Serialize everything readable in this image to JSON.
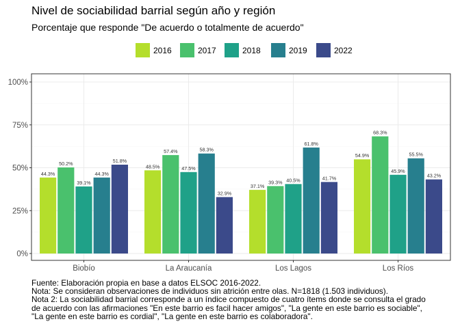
{
  "chart_data": {
    "type": "bar",
    "title": "Nivel de sociabilidad barrial según año y región",
    "subtitle": "Porcentaje que responde \"De acuerdo o totalmente de acuerdo\"",
    "categories": [
      "Biobío",
      "La Araucanía",
      "Los Lagos",
      "Los Ríos"
    ],
    "series": [
      {
        "name": "2016",
        "color": "#b4de2c",
        "values": [
          44.3,
          48.5,
          37.1,
          54.9
        ]
      },
      {
        "name": "2017",
        "color": "#4ac16d",
        "values": [
          50.2,
          57.4,
          39.3,
          68.3
        ]
      },
      {
        "name": "2018",
        "color": "#1fa188",
        "values": [
          39.1,
          47.5,
          40.5,
          45.9
        ]
      },
      {
        "name": "2019",
        "color": "#277f8e",
        "values": [
          44.3,
          58.3,
          61.8,
          55.5
        ]
      },
      {
        "name": "2022",
        "color": "#3b4a8a",
        "values": [
          51.8,
          32.9,
          41.7,
          43.2
        ]
      }
    ],
    "yticks": [
      "0%",
      "25%",
      "50%",
      "75%",
      "100%"
    ],
    "ylim": [
      0,
      100
    ],
    "legend_position": "top",
    "grid": true
  },
  "caption": [
    "Fuente: Elaboración propia en base a datos ELSOC 2016-2022.",
    "Nota: Se consideran observaciones de individuos sin atrición entre olas. N=1818 (1.503 individuos).",
    "Nota 2: La sociabilidad barrial corresponde a un índice compuesto de cuatro ítems donde se consulta el grado",
    "de acuerdo con las afirmaciones \"En este barrio es facil hacer amigos\", \"La gente en este barrio es sociable\",",
    "\"La gente en este barrio es cordial\", \"La gente en este barrio es colaboradora\"."
  ]
}
